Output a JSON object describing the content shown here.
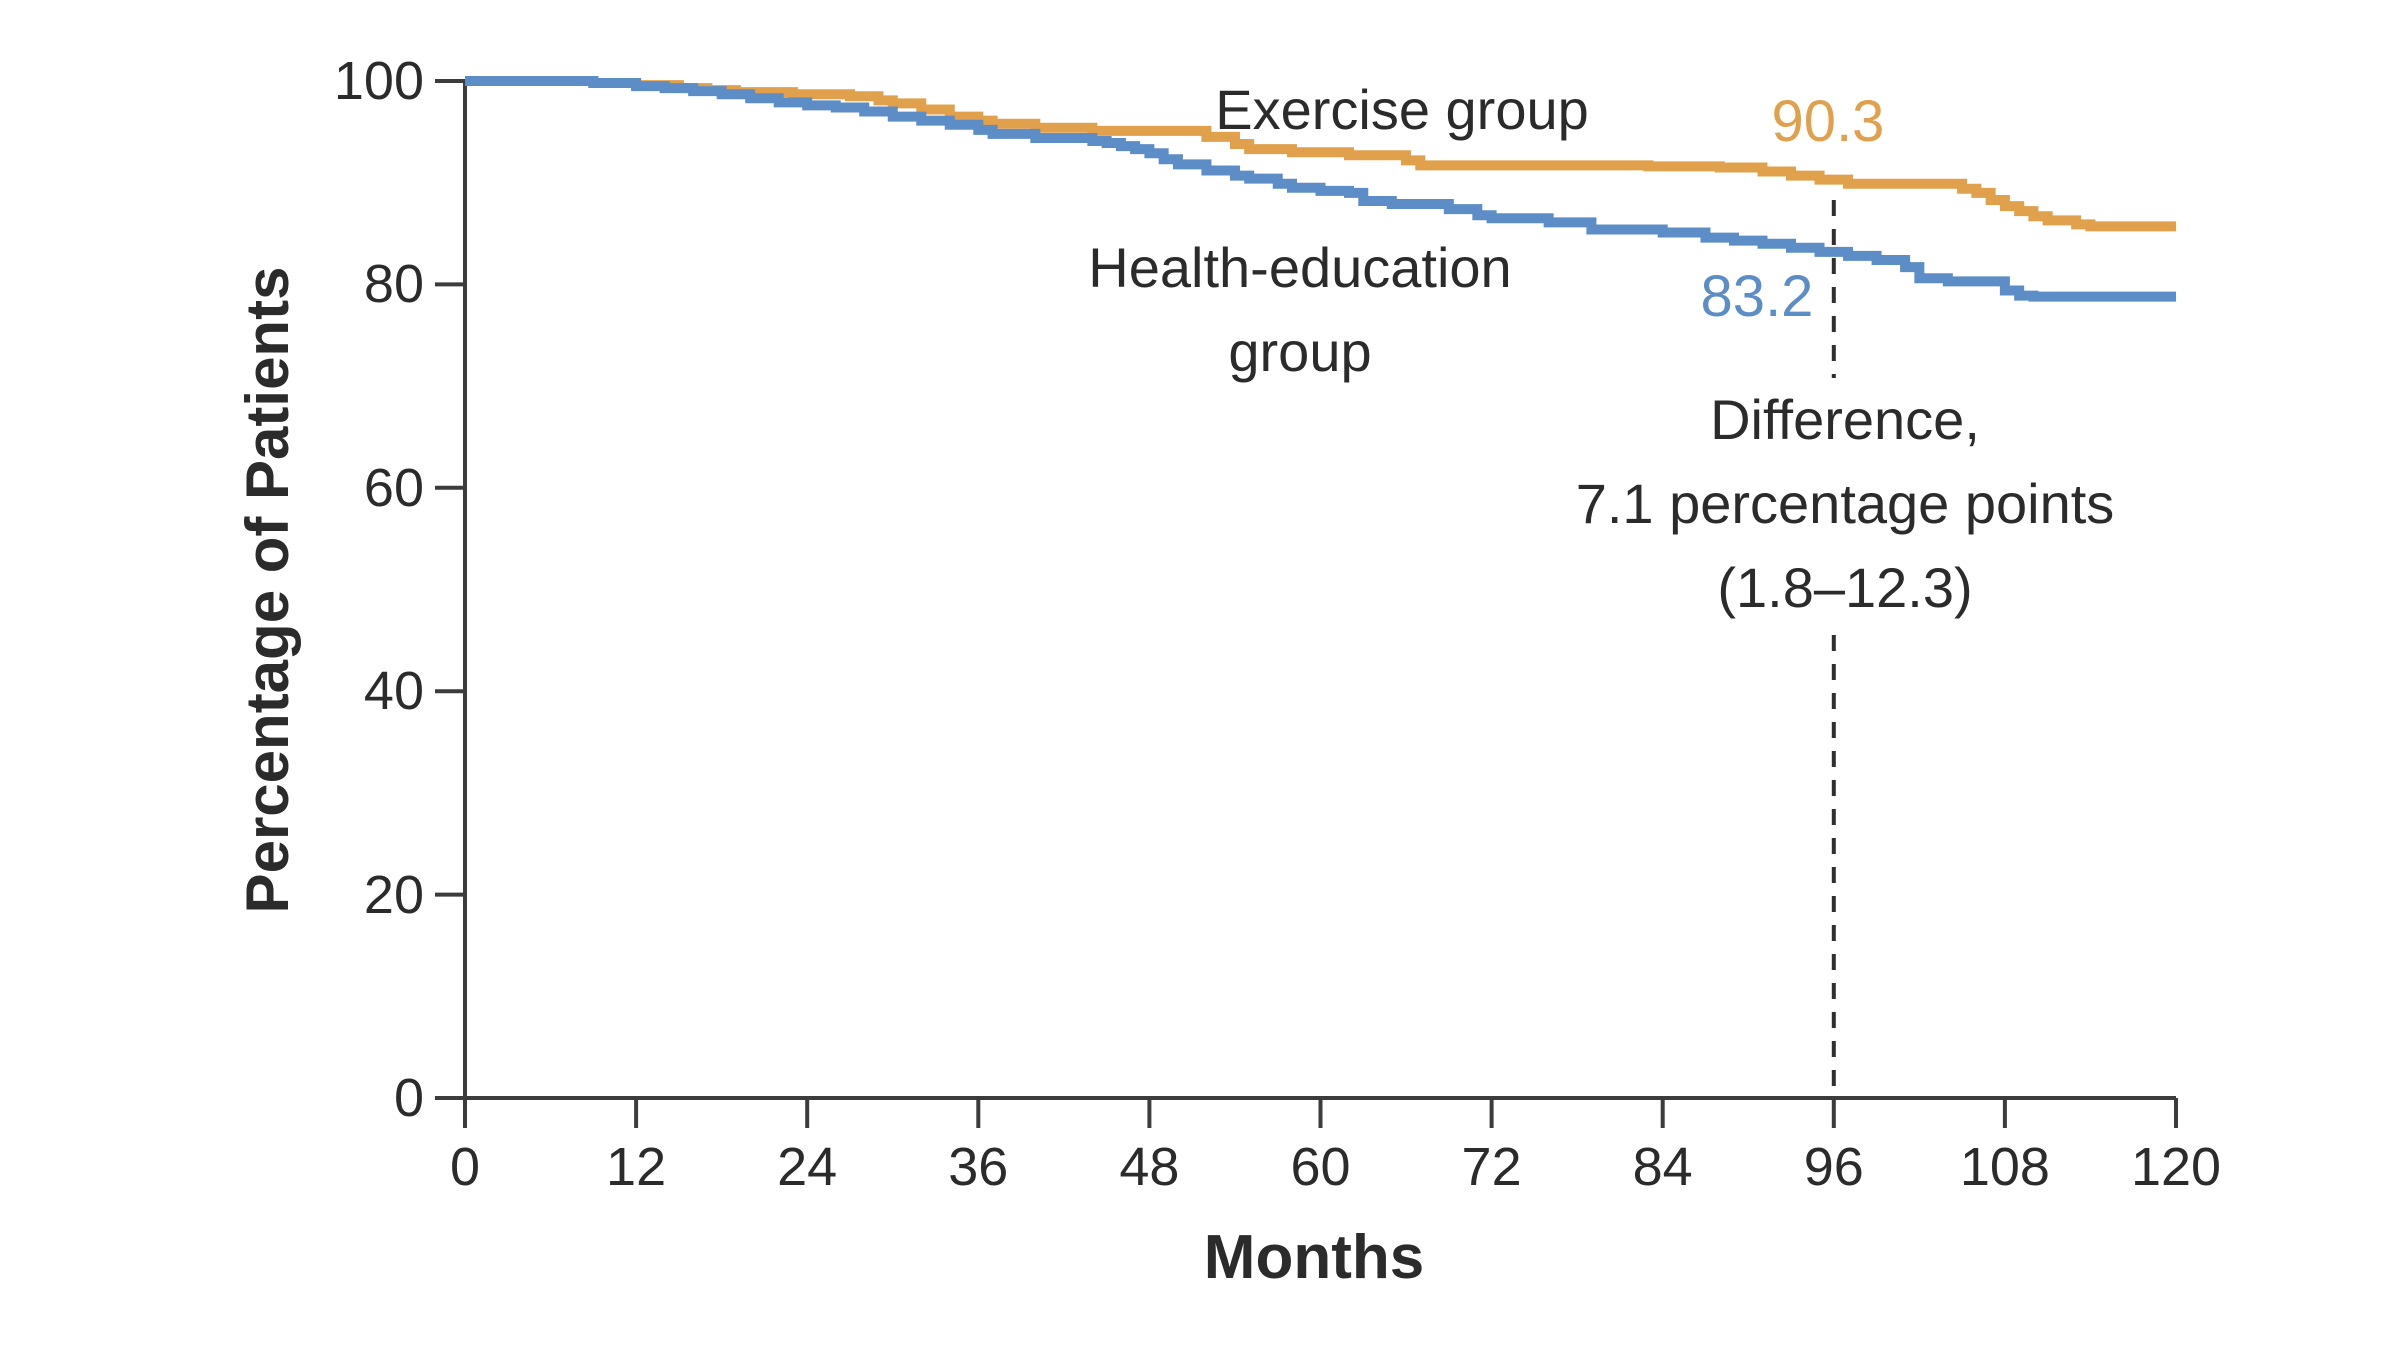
{
  "figure": {
    "background": "#ffffff",
    "axis_color": "#3c3c3c",
    "text_color": "#2b2b2b"
  },
  "chart_data": {
    "type": "line",
    "subtype": "kaplan-meier-step",
    "title": "",
    "xlabel": "Months",
    "ylabel": "Percentage of Patients",
    "xlim": [
      0,
      120
    ],
    "ylim": [
      0,
      100
    ],
    "xticks": [
      0,
      12,
      24,
      36,
      48,
      60,
      72,
      84,
      96,
      108,
      120
    ],
    "yticks": [
      0,
      20,
      40,
      60,
      80,
      100
    ],
    "grid": false,
    "legend_position": "inline-annotations",
    "reference_line": {
      "month": 96,
      "style": "dashed",
      "color": "#2f2f2f"
    },
    "series": [
      {
        "name": "Exercise group",
        "color": "#e1a04b",
        "value_at_reference": 90.3,
        "points": [
          [
            0,
            100
          ],
          [
            9,
            99.8
          ],
          [
            12,
            99.6
          ],
          [
            15,
            99.3
          ],
          [
            17,
            99.1
          ],
          [
            19,
            98.9
          ],
          [
            23,
            98.7
          ],
          [
            27,
            98.5
          ],
          [
            29,
            98.1
          ],
          [
            30,
            97.8
          ],
          [
            32,
            97.2
          ],
          [
            34,
            96.5
          ],
          [
            36,
            96.1
          ],
          [
            37,
            95.8
          ],
          [
            40,
            95.4
          ],
          [
            44,
            95.1
          ],
          [
            52,
            94.5
          ],
          [
            54,
            93.8
          ],
          [
            55,
            93.3
          ],
          [
            58,
            93.0
          ],
          [
            62,
            92.7
          ],
          [
            66,
            92.2
          ],
          [
            67,
            91.7
          ],
          [
            83,
            91.6
          ],
          [
            88,
            91.5
          ],
          [
            91,
            91.1
          ],
          [
            93,
            90.7
          ],
          [
            95,
            90.3
          ],
          [
            97,
            89.9
          ],
          [
            105,
            89.4
          ],
          [
            106,
            89.0
          ],
          [
            107,
            88.3
          ],
          [
            108,
            87.7
          ],
          [
            109,
            87.2
          ],
          [
            110,
            86.7
          ],
          [
            111,
            86.3
          ],
          [
            113,
            85.9
          ],
          [
            114,
            85.7
          ],
          [
            120,
            85.7
          ]
        ]
      },
      {
        "name": "Health-education group",
        "color": "#5d8dc6",
        "value_at_reference": 83.2,
        "points": [
          [
            0,
            100
          ],
          [
            9,
            99.8
          ],
          [
            12,
            99.5
          ],
          [
            14,
            99.3
          ],
          [
            16,
            99.0
          ],
          [
            18,
            98.7
          ],
          [
            20,
            98.3
          ],
          [
            22,
            97.9
          ],
          [
            24,
            97.6
          ],
          [
            26,
            97.4
          ],
          [
            28,
            97.0
          ],
          [
            30,
            96.5
          ],
          [
            32,
            96.1
          ],
          [
            34,
            95.7
          ],
          [
            36,
            95.2
          ],
          [
            37,
            94.8
          ],
          [
            40,
            94.4
          ],
          [
            44,
            94.1
          ],
          [
            45,
            93.9
          ],
          [
            46,
            93.6
          ],
          [
            47,
            93.3
          ],
          [
            48,
            92.9
          ],
          [
            49,
            92.3
          ],
          [
            50,
            91.8
          ],
          [
            52,
            91.2
          ],
          [
            54,
            90.7
          ],
          [
            55,
            90.4
          ],
          [
            57,
            89.9
          ],
          [
            58,
            89.5
          ],
          [
            60,
            89.2
          ],
          [
            62,
            89.0
          ],
          [
            63,
            88.2
          ],
          [
            65,
            87.9
          ],
          [
            69,
            87.4
          ],
          [
            71,
            86.8
          ],
          [
            72,
            86.5
          ],
          [
            76,
            86.1
          ],
          [
            79,
            85.4
          ],
          [
            84,
            85.1
          ],
          [
            87,
            84.6
          ],
          [
            89,
            84.3
          ],
          [
            91,
            84.0
          ],
          [
            93,
            83.6
          ],
          [
            95,
            83.2
          ],
          [
            97,
            82.8
          ],
          [
            99,
            82.4
          ],
          [
            101,
            81.7
          ],
          [
            102,
            80.6
          ],
          [
            104,
            80.3
          ],
          [
            108,
            79.4
          ],
          [
            109,
            78.9
          ],
          [
            110,
            78.8
          ],
          [
            120,
            78.8
          ]
        ]
      }
    ],
    "annotations": {
      "exercise_label": "Exercise group",
      "health_label_line1": "Health-education",
      "health_label_line2": "group",
      "exercise_value": "90.3",
      "health_value": "83.2",
      "difference_line1": "Difference,",
      "difference_line2": "7.1 percentage points",
      "difference_line3": "(1.8–12.3)"
    }
  }
}
